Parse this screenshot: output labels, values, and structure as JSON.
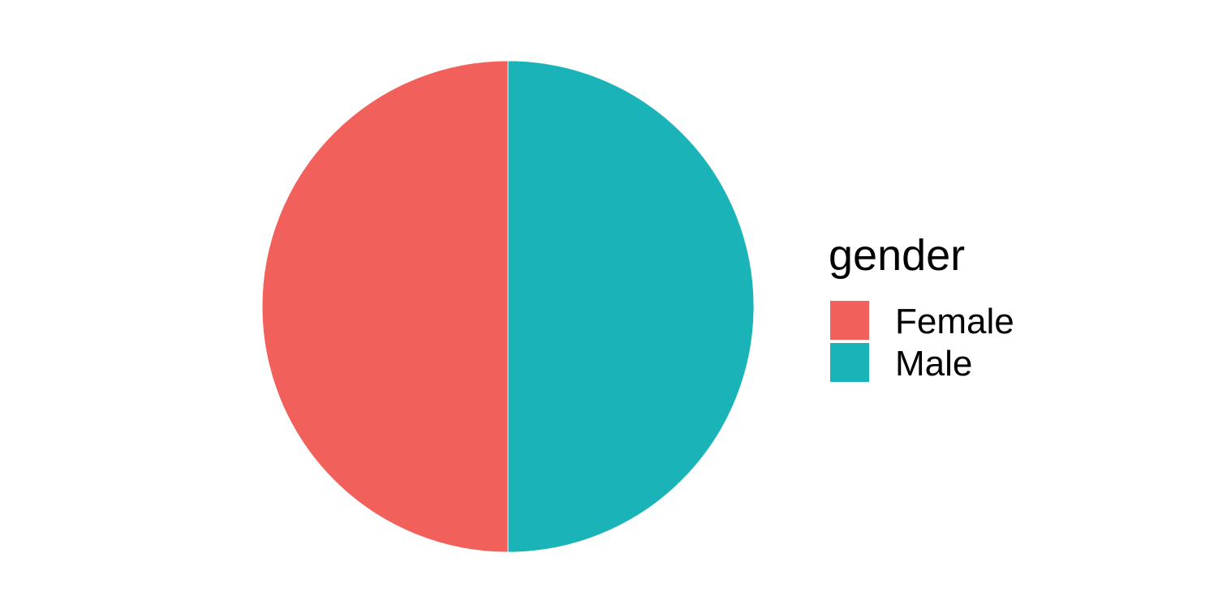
{
  "chart_data": {
    "type": "pie",
    "title": "",
    "legend_title": "gender",
    "legend_position": "right",
    "categories": [
      "Female",
      "Male"
    ],
    "values": [
      50,
      50
    ],
    "colors": [
      "#F2605C",
      "#1AB3B8"
    ]
  }
}
